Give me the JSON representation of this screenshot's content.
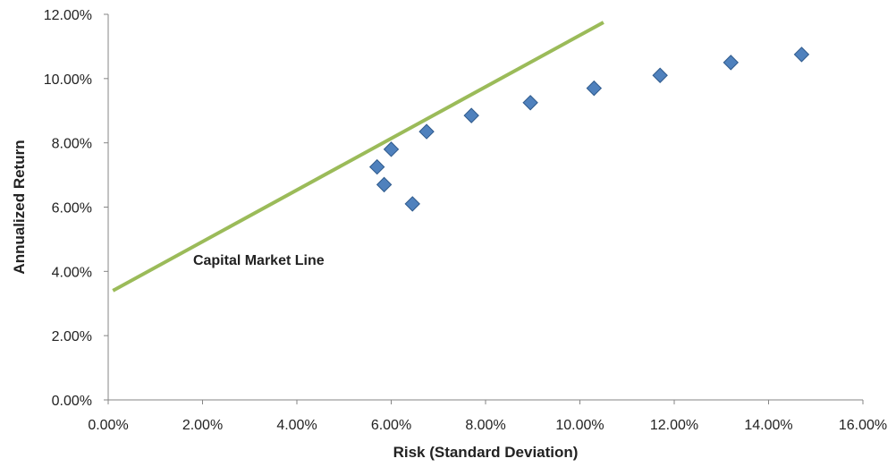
{
  "chart_data": {
    "type": "scatter",
    "title": "",
    "xlabel": "Risk (Standard Deviation)",
    "ylabel": "Annualized Return",
    "xlim": [
      0,
      16
    ],
    "ylim": [
      0,
      12
    ],
    "x_ticks": [
      "0.00%",
      "2.00%",
      "4.00%",
      "6.00%",
      "8.00%",
      "10.00%",
      "12.00%",
      "14.00%",
      "16.00%"
    ],
    "y_ticks": [
      "0.00%",
      "2.00%",
      "4.00%",
      "6.00%",
      "8.00%",
      "10.00%",
      "12.00%"
    ],
    "grid": false,
    "legend": "none",
    "series": [
      {
        "type": "scatter",
        "marker": "diamond",
        "color": "#4F81BD",
        "points": [
          {
            "x": 5.7,
            "y": 7.25
          },
          {
            "x": 5.85,
            "y": 6.7
          },
          {
            "x": 6.0,
            "y": 7.8
          },
          {
            "x": 6.45,
            "y": 6.1
          },
          {
            "x": 6.75,
            "y": 8.35
          },
          {
            "x": 7.7,
            "y": 8.85
          },
          {
            "x": 8.95,
            "y": 9.25
          },
          {
            "x": 10.3,
            "y": 9.7
          },
          {
            "x": 11.7,
            "y": 10.1
          },
          {
            "x": 13.2,
            "y": 10.5
          },
          {
            "x": 14.7,
            "y": 10.75
          }
        ]
      },
      {
        "type": "line",
        "color": "#9BBB59",
        "points": [
          {
            "x": 0.1,
            "y": 3.4
          },
          {
            "x": 10.5,
            "y": 11.75
          }
        ]
      }
    ],
    "annotations": [
      {
        "text": "Capital Market Line",
        "x": 1.8,
        "y": 4.2
      }
    ]
  }
}
